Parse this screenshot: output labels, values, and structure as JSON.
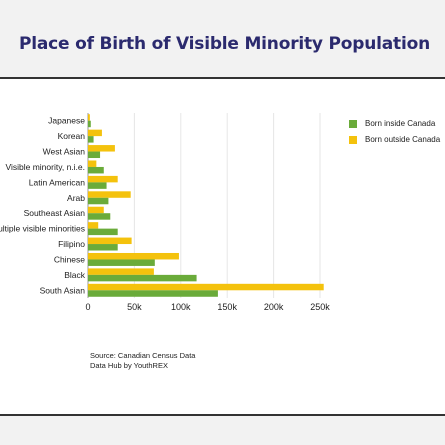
{
  "page": {
    "title": "Place of Birth of Visible Minority Population",
    "source_line1": "Source: Canadian Census Data",
    "source_line2": "Data Hub by YouthREX"
  },
  "colors": {
    "born_inside": "#6aab3a",
    "born_outside": "#f4c20d",
    "title": "#2b2a6e",
    "grid": "#e6e6e6"
  },
  "chart_data": {
    "type": "bar",
    "orientation": "horizontal",
    "categories": [
      "Japanese",
      "Korean",
      "West Asian",
      "Visible minority, n.i.e.",
      "Latin American",
      "Arab",
      "Southeast Asian",
      "Multiple visible minorities",
      "Filipino",
      "Chinese",
      "Black",
      "South Asian"
    ],
    "series": [
      {
        "name": "Born inside Canada",
        "values": [
          3000,
          6000,
          13000,
          17000,
          20000,
          22000,
          24000,
          32000,
          32000,
          72000,
          117000,
          140000
        ]
      },
      {
        "name": "Born outside Canada",
        "values": [
          2000,
          15000,
          29000,
          9000,
          32000,
          46000,
          17000,
          11000,
          47000,
          98000,
          71000,
          254000
        ]
      }
    ],
    "xlim": [
      0,
      250000
    ],
    "xticks": [
      {
        "value": 0,
        "label": "0"
      },
      {
        "value": 50000,
        "label": "50k"
      },
      {
        "value": 100000,
        "label": "100k"
      },
      {
        "value": 150000,
        "label": "150k"
      },
      {
        "value": 200000,
        "label": "200k"
      },
      {
        "value": 250000,
        "label": "250k"
      }
    ],
    "legend_position": "right",
    "grid": true
  }
}
